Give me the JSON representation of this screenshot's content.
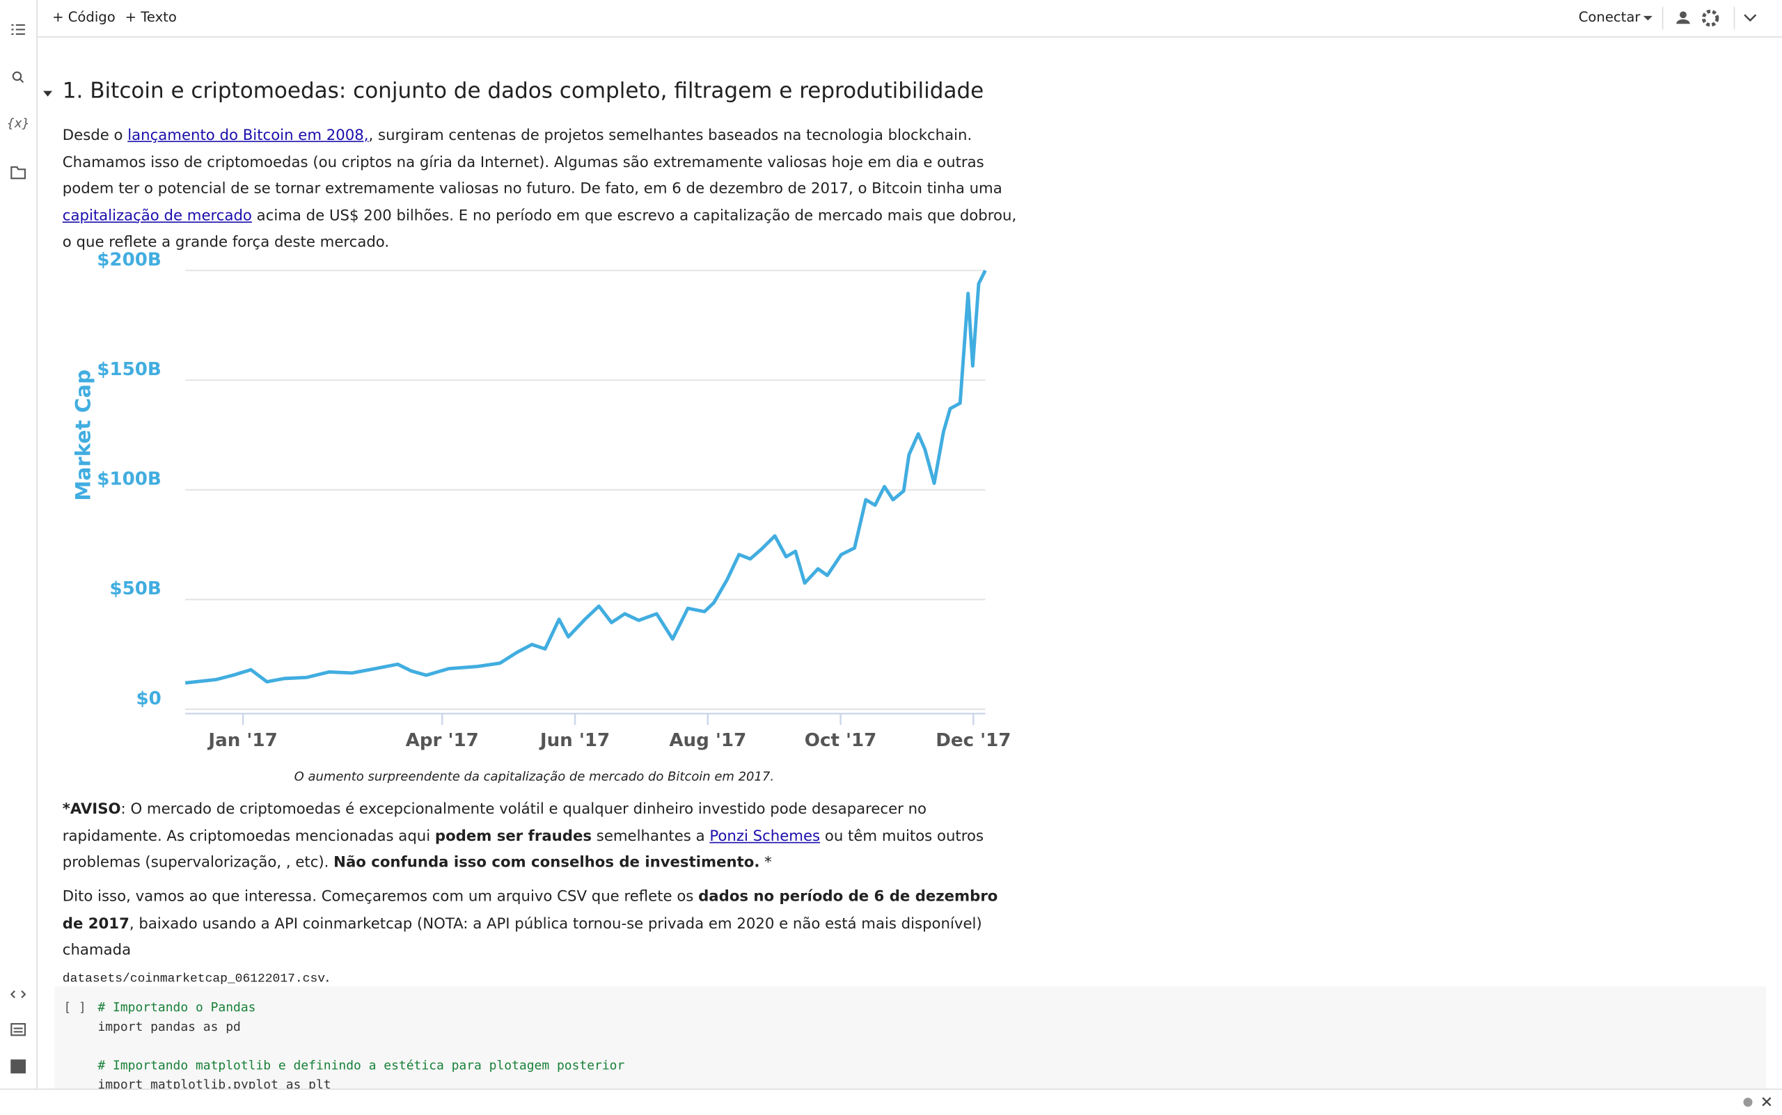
{
  "toolbar": {
    "add_code": "+ Código",
    "add_text": "+ Texto",
    "connect": "Conectar"
  },
  "sidebar": {
    "variables": "{x}"
  },
  "section": {
    "title": "1. Bitcoin e criptomoedas: conjunto de dados completo, filtragem e reprodutibilidade",
    "intro": [
      "Desde o ",
      "lançamento do Bitcoin em 2008,",
      ", surgiram centenas de projetos semelhantes baseados na tecnologia blockchain. Chamamos isso de criptomoedas (ou criptos na gíria da Internet). Algumas são extremamente valiosas hoje em dia e outras podem ter o potencial de se tornar extremamente valiosas no futuro. De fato, em 6 de dezembro de 2017, o Bitcoin tinha uma ",
      "capitalização de mercado",
      " acima de US$ 200 bilhões. E no período em que escrevo a capitalização de mercado mais que dobrou, o que reflete a grande força deste mercado."
    ],
    "caption": "O aumento surpreendente da capitalização de mercado do Bitcoin em 2017.",
    "warning": [
      "*AVISO",
      ": O mercado de criptomoedas é excepcionalmente volátil e qualquer dinheiro investido pode desaparecer no rapidamente. As criptomoedas mencionadas aqui ",
      "podem ser fraudes",
      " semelhantes a ",
      "Ponzi Schemes",
      " ou têm muitos outros problemas (supervalorização, , etc). ",
      "Não confunda isso com conselhos de investimento.",
      " *"
    ],
    "next": [
      "Dito isso, vamos ao que interessa. Começaremos com um arquivo CSV que reflete os ",
      "dados no período de 6 de dezembro de 2017",
      ", baixado usando a API coinmarketcap (NOTA: a API pública tornou-se privada em 2020 e não está mais disponível) chamada ",
      "datasets/coinmarketcap_06122017.csv",
      "."
    ]
  },
  "code_cell": {
    "prompt": "[ ]",
    "block1": [
      "# Importando o Pandas",
      "import pandas as pd"
    ],
    "block2": [
      "# Importando matplotlib e definindo a estética para plotagem posterior",
      "import matplotlib.pyplot as plt"
    ]
  },
  "chart_data": {
    "type": "line",
    "ylabel": "Market Cap",
    "color": "#41ade0",
    "grid": true,
    "x": [
      -0.87,
      -0.41,
      -0.15,
      0.12,
      0.36,
      0.62,
      0.96,
      1.3,
      1.64,
      1.99,
      2.33,
      2.53,
      2.76,
      3.1,
      3.53,
      3.87,
      4.13,
      4.35,
      4.55,
      4.76,
      4.9,
      5.15,
      5.36,
      5.55,
      5.75,
      5.96,
      6.23,
      6.47,
      6.7,
      6.95,
      7.09,
      7.29,
      7.47,
      7.64,
      7.81,
      8.01,
      8.18,
      8.32,
      8.46,
      8.66,
      8.8,
      9.01,
      9.21,
      9.38,
      9.52,
      9.66,
      9.79,
      9.95,
      10.03,
      10.17,
      10.27,
      10.41,
      10.55,
      10.65,
      10.8,
      10.92,
      10.99,
      11.08,
      11.18
    ],
    "values": [
      12,
      13.5,
      15.5,
      18,
      12.5,
      14,
      14.5,
      17,
      16.5,
      18.5,
      20.5,
      17.5,
      15.5,
      18.5,
      19.5,
      21,
      26,
      29.5,
      27.5,
      41,
      33,
      41,
      47,
      39.5,
      43.5,
      40.5,
      43.5,
      32,
      46,
      44.5,
      48.5,
      59,
      70.5,
      68.5,
      73,
      79,
      69.5,
      72,
      57.5,
      64,
      61,
      70.5,
      73.5,
      95.5,
      93,
      101.5,
      95.5,
      99.5,
      116,
      125.5,
      118.5,
      103,
      126.5,
      137,
      139.5,
      189.5,
      156.5,
      194,
      200
    ],
    "xlim": [
      -0.87,
      11.18
    ],
    "xticks": [
      {
        "value": 0,
        "label": "Jan '17"
      },
      {
        "value": 3,
        "label": "Apr '17"
      },
      {
        "value": 5,
        "label": "Jun '17"
      },
      {
        "value": 7,
        "label": "Aug '17"
      },
      {
        "value": 9,
        "label": "Oct '17"
      },
      {
        "value": 11,
        "label": "Dec '17"
      }
    ],
    "ylim": [
      -2,
      200
    ],
    "yticks": [
      {
        "value": 0,
        "label": "$0"
      },
      {
        "value": 50,
        "label": "$50B"
      },
      {
        "value": 100,
        "label": "$100B"
      },
      {
        "value": 150,
        "label": "$150B"
      },
      {
        "value": 200,
        "label": "$200B"
      }
    ]
  }
}
